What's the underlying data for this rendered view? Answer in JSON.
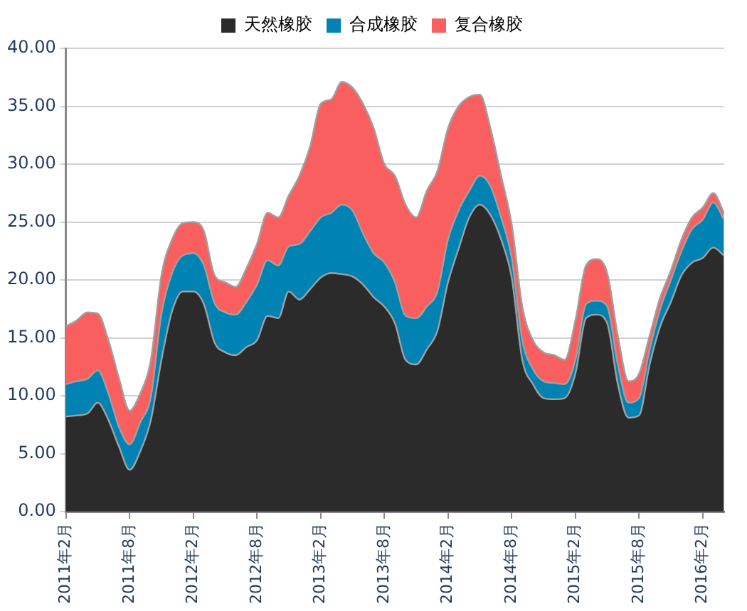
{
  "chart_data": {
    "type": "area",
    "stacked": true,
    "legend": "top",
    "grid": "y",
    "marker": "none",
    "categories": [
      "2011年2月",
      null,
      null,
      null,
      null,
      null,
      "2011年8月",
      null,
      null,
      null,
      null,
      null,
      "2012年2月",
      null,
      null,
      null,
      null,
      null,
      "2012年8月",
      null,
      null,
      null,
      null,
      null,
      "2013年2月",
      null,
      null,
      null,
      null,
      null,
      "2013年8月",
      null,
      null,
      null,
      null,
      null,
      "2014年2月",
      null,
      null,
      null,
      null,
      null,
      "2014年8月",
      null,
      null,
      null,
      null,
      null,
      "2015年2月",
      null,
      null,
      null,
      null,
      null,
      "2015年8月",
      null,
      null,
      null,
      null,
      null,
      "2016年2月",
      null,
      null
    ],
    "ylim": [
      0,
      40
    ],
    "yticks": [
      {
        "value": 0,
        "label": "0.00"
      },
      {
        "value": 5,
        "label": "5.00"
      },
      {
        "value": 10,
        "label": "10.00"
      },
      {
        "value": 15,
        "label": "15.00"
      },
      {
        "value": 20,
        "label": "20.00"
      },
      {
        "value": 25,
        "label": "25.00"
      },
      {
        "value": 30,
        "label": "30.00"
      },
      {
        "value": 35,
        "label": "35.00"
      },
      {
        "value": 40,
        "label": "40.00"
      }
    ],
    "series": [
      {
        "name": "天然橡胶",
        "color": "#2b2b2b",
        "values": [
          8.2,
          8.3,
          8.45,
          9.4,
          7.9,
          5.6,
          3.6,
          5.2,
          7.9,
          13.1,
          17.3,
          19.0,
          19.0,
          17.9,
          14.6,
          13.75,
          13.5,
          14.2,
          14.8,
          16.9,
          16.7,
          19.0,
          18.3,
          19.2,
          20.2,
          20.6,
          20.5,
          20.3,
          19.6,
          18.5,
          17.7,
          16.25,
          13.1,
          12.7,
          14.0,
          15.6,
          19.8,
          22.7,
          25.4,
          26.5,
          25.6,
          23.5,
          20.2,
          13.1,
          11.0,
          9.8,
          9.7,
          9.8,
          11.9,
          16.7,
          17.0,
          16.25,
          11.0,
          8.1,
          8.3,
          12.7,
          16.0,
          18.1,
          20.4,
          21.5,
          21.9,
          22.8,
          22.1
        ]
      },
      {
        "name": "合成橡胶",
        "color": "#0083b3",
        "values": [
          2.8,
          2.95,
          3.0,
          2.8,
          2.3,
          1.7,
          2.2,
          2.5,
          2.0,
          4.0,
          3.3,
          3.1,
          3.3,
          3.35,
          3.4,
          3.45,
          3.5,
          3.9,
          4.8,
          4.8,
          4.55,
          3.9,
          4.8,
          5.0,
          5.2,
          5.2,
          6.0,
          5.7,
          4.4,
          3.8,
          3.8,
          3.55,
          3.8,
          4.0,
          3.7,
          3.4,
          3.7,
          3.3,
          2.3,
          2.5,
          2.5,
          1.9,
          1.7,
          1.7,
          1.3,
          1.45,
          1.4,
          1.2,
          1.2,
          1.2,
          1.2,
          1.45,
          1.7,
          1.3,
          1.5,
          1.3,
          1.5,
          1.9,
          2.1,
          2.9,
          3.3,
          3.9,
          3.1
        ]
      },
      {
        "name": "复合橡胶",
        "color": "#f95f5f",
        "values": [
          5.0,
          5.25,
          5.75,
          4.9,
          4.6,
          4.2,
          2.9,
          2.5,
          3.2,
          3.3,
          2.9,
          2.8,
          2.7,
          2.95,
          2.4,
          2.6,
          2.4,
          2.9,
          3.5,
          4.1,
          4.15,
          4.4,
          5.9,
          7.3,
          9.8,
          9.8,
          10.6,
          10.6,
          11.2,
          10.8,
          8.5,
          9.2,
          9.6,
          8.7,
          10.0,
          10.4,
          9.6,
          9.0,
          8.1,
          7.0,
          5.0,
          3.6,
          2.9,
          2.9,
          2.5,
          2.5,
          2.4,
          2.1,
          3.4,
          3.35,
          3.6,
          2.9,
          2.5,
          1.85,
          2.1,
          1.2,
          1.0,
          0.8,
          1.0,
          1.0,
          1.05,
          0.8,
          0.6
        ]
      }
    ]
  }
}
